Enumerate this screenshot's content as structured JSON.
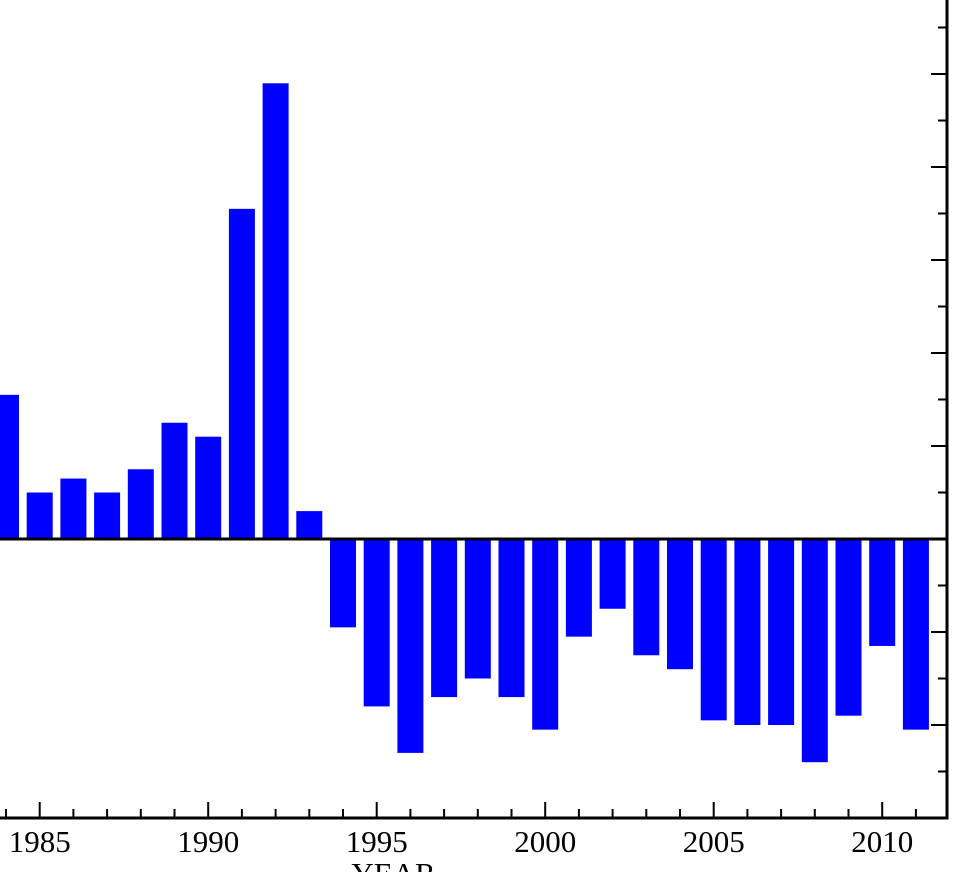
{
  "chart_data": {
    "type": "bar",
    "xlabel": "YEAR",
    "ylabel": "",
    "title": "",
    "bar_color": "#0000ff",
    "grid": false,
    "x_tick_labels": [
      "1985",
      "1990",
      "1995",
      "2000",
      "2005",
      "2010"
    ],
    "categories": [
      1984,
      1985,
      1986,
      1987,
      1988,
      1989,
      1990,
      1991,
      1992,
      1993,
      1994,
      1995,
      1996,
      1997,
      1998,
      1999,
      2000,
      2001,
      2002,
      2003,
      2004,
      2005,
      2006,
      2007,
      2008,
      2009,
      2010,
      2011
    ],
    "values": [
      3.1,
      1.0,
      1.3,
      1.0,
      1.5,
      2.5,
      2.2,
      7.1,
      9.8,
      0.6,
      -1.9,
      -3.6,
      -4.6,
      -3.4,
      -3.0,
      -3.4,
      -4.1,
      -2.1,
      -1.5,
      -2.5,
      -2.8,
      -3.9,
      -4.0,
      -4.0,
      -4.8,
      -3.8,
      -2.3,
      -4.1
    ],
    "ylim": [
      -7.2,
      11.6
    ]
  }
}
